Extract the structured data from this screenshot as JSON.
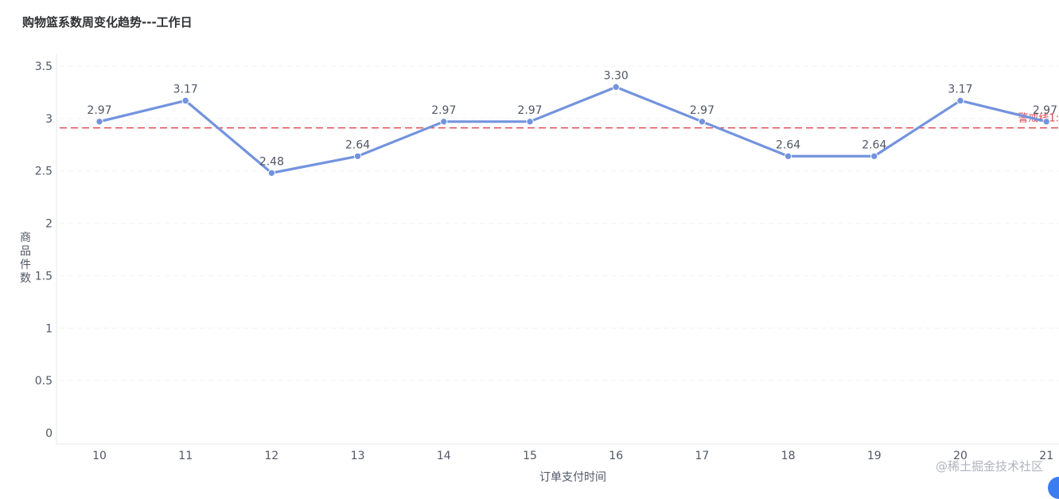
{
  "chart_data": {
    "type": "line",
    "title": "购物篮系数周变化趋势---工作日",
    "xlabel": "订单支付时间",
    "ylabel": "商品件数",
    "categories": [
      "10",
      "11",
      "12",
      "13",
      "14",
      "15",
      "16",
      "17",
      "18",
      "19",
      "20",
      "21"
    ],
    "series": [
      {
        "values": [
          2.97,
          3.17,
          2.48,
          2.64,
          2.97,
          2.97,
          3.3,
          2.97,
          2.64,
          2.64,
          3.17,
          2.97
        ],
        "value_labels": [
          "2.97",
          "3.17",
          "2.48",
          "2.64",
          "2.97",
          "2.97",
          "3.30",
          "2.97",
          "2.64",
          "2.64",
          "3.17",
          "2.97"
        ],
        "color": "#7393de"
      }
    ],
    "yticks": [
      "0",
      "0.5",
      "1",
      "1.5",
      "2",
      "2.5",
      "3",
      "3.5"
    ],
    "ylim": [
      0,
      3.5
    ],
    "grid": true,
    "reference_line": {
      "label": "警戒线1:",
      "value": 2.91,
      "color": "#e0454f",
      "style": "dashed"
    }
  },
  "watermark": "@稀土掘金技术社区"
}
